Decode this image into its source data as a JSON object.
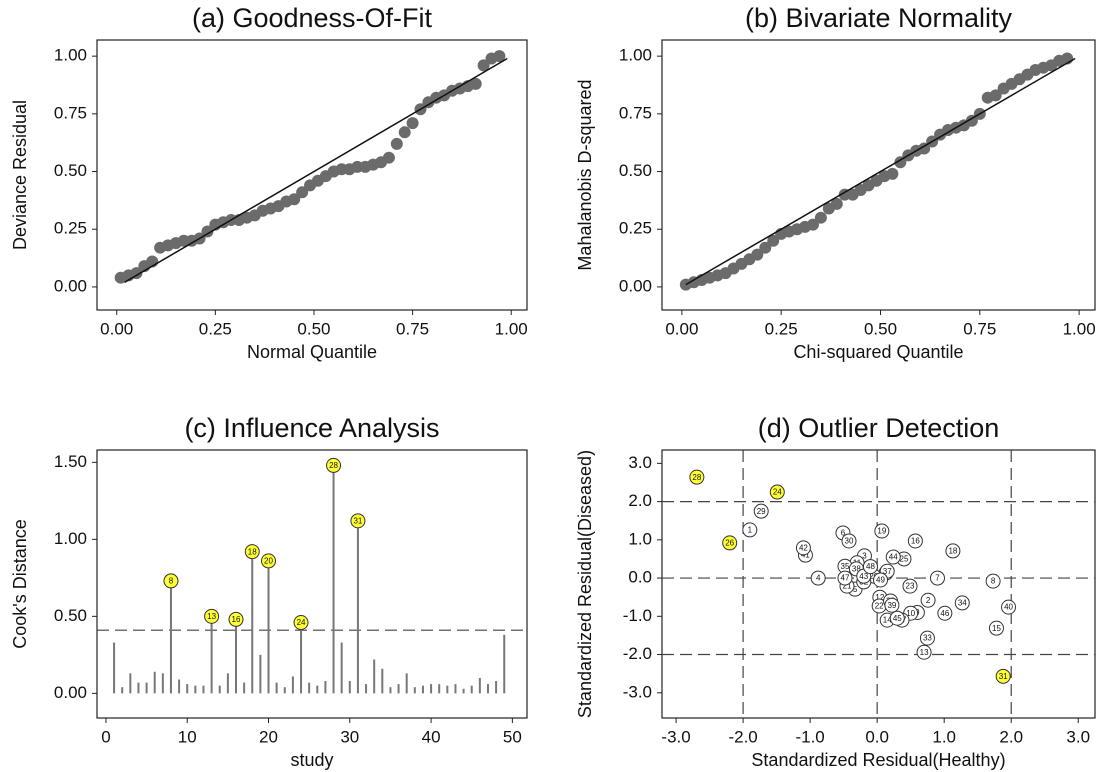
{
  "chart_data": [
    {
      "type": "scatter",
      "title": "(a) Goodness-Of-Fit",
      "x_label": "Normal Quantile",
      "y_label": "Deviance Residual",
      "color": "#6b6b6b",
      "x": [
        0.01,
        0.03,
        0.05,
        0.07,
        0.09,
        0.11,
        0.13,
        0.15,
        0.17,
        0.19,
        0.21,
        0.23,
        0.25,
        0.27,
        0.29,
        0.31,
        0.33,
        0.35,
        0.37,
        0.39,
        0.41,
        0.43,
        0.45,
        0.47,
        0.49,
        0.51,
        0.53,
        0.55,
        0.57,
        0.59,
        0.61,
        0.63,
        0.65,
        0.67,
        0.69,
        0.71,
        0.73,
        0.75,
        0.77,
        0.79,
        0.81,
        0.83,
        0.85,
        0.87,
        0.89,
        0.91,
        0.93,
        0.95,
        0.97
      ],
      "y": [
        0.04,
        0.05,
        0.06,
        0.09,
        0.11,
        0.17,
        0.18,
        0.19,
        0.2,
        0.2,
        0.21,
        0.24,
        0.27,
        0.28,
        0.29,
        0.29,
        0.3,
        0.31,
        0.33,
        0.34,
        0.35,
        0.37,
        0.38,
        0.41,
        0.44,
        0.46,
        0.48,
        0.5,
        0.51,
        0.51,
        0.52,
        0.52,
        0.53,
        0.54,
        0.56,
        0.62,
        0.67,
        0.71,
        0.77,
        0.8,
        0.82,
        0.83,
        0.85,
        0.86,
        0.87,
        0.88,
        0.96,
        0.99,
        1.0
      ],
      "reference_line": {
        "x": [
          0.02,
          0.99
        ],
        "y": [
          0.02,
          0.99
        ]
      },
      "xlim": [
        -0.05,
        1.04
      ],
      "ylim": [
        -0.1,
        1.07
      ],
      "xticks": [
        {
          "value": 0,
          "label": "0.00"
        },
        {
          "value": 0.25,
          "label": "0.25"
        },
        {
          "value": 0.5,
          "label": "0.50"
        },
        {
          "value": 0.75,
          "label": "0.75"
        },
        {
          "value": 1,
          "label": "1.00"
        }
      ],
      "yticks": [
        {
          "value": 0,
          "label": "0.00"
        },
        {
          "value": 0.25,
          "label": "0.25"
        },
        {
          "value": 0.5,
          "label": "0.50"
        },
        {
          "value": 0.75,
          "label": "0.75"
        },
        {
          "value": 1,
          "label": "1.00"
        }
      ]
    },
    {
      "type": "scatter",
      "title": "(b) Bivariate Normality",
      "x_label": "Chi-squared Quantile",
      "y_label": "Mahalanobis D-squared",
      "color": "#6b6b6b",
      "x": [
        0.01,
        0.03,
        0.05,
        0.07,
        0.09,
        0.11,
        0.13,
        0.15,
        0.17,
        0.19,
        0.21,
        0.23,
        0.25,
        0.27,
        0.29,
        0.31,
        0.33,
        0.35,
        0.37,
        0.39,
        0.41,
        0.43,
        0.45,
        0.47,
        0.49,
        0.51,
        0.53,
        0.55,
        0.57,
        0.59,
        0.61,
        0.63,
        0.65,
        0.67,
        0.69,
        0.71,
        0.73,
        0.75,
        0.77,
        0.79,
        0.81,
        0.83,
        0.85,
        0.87,
        0.89,
        0.91,
        0.93,
        0.95,
        0.97
      ],
      "y": [
        0.01,
        0.02,
        0.03,
        0.04,
        0.05,
        0.06,
        0.08,
        0.1,
        0.12,
        0.14,
        0.17,
        0.2,
        0.23,
        0.24,
        0.25,
        0.26,
        0.27,
        0.3,
        0.34,
        0.36,
        0.4,
        0.4,
        0.42,
        0.44,
        0.46,
        0.48,
        0.49,
        0.54,
        0.57,
        0.59,
        0.6,
        0.63,
        0.66,
        0.68,
        0.69,
        0.7,
        0.72,
        0.75,
        0.82,
        0.83,
        0.86,
        0.88,
        0.9,
        0.92,
        0.94,
        0.95,
        0.96,
        0.98,
        0.99
      ],
      "reference_line": {
        "x": [
          0.01,
          0.99
        ],
        "y": [
          0.01,
          0.99
        ]
      },
      "xlim": [
        -0.05,
        1.04
      ],
      "ylim": [
        -0.1,
        1.07
      ],
      "xticks": [
        {
          "value": 0,
          "label": "0.00"
        },
        {
          "value": 0.25,
          "label": "0.25"
        },
        {
          "value": 0.5,
          "label": "0.50"
        },
        {
          "value": 0.75,
          "label": "0.75"
        },
        {
          "value": 1,
          "label": "1.00"
        }
      ],
      "yticks": [
        {
          "value": 0,
          "label": "0.00"
        },
        {
          "value": 0.25,
          "label": "0.25"
        },
        {
          "value": 0.5,
          "label": "0.50"
        },
        {
          "value": 0.75,
          "label": "0.75"
        },
        {
          "value": 1,
          "label": "1.00"
        }
      ]
    },
    {
      "type": "stem",
      "title": "(c) Influence Analysis",
      "x_label": "study",
      "y_label": "Cook's Distance",
      "color": "#777777",
      "highlight_color": "#ffff33",
      "x": [
        1,
        2,
        3,
        4,
        5,
        6,
        7,
        8,
        9,
        10,
        11,
        12,
        13,
        14,
        15,
        16,
        17,
        18,
        19,
        20,
        21,
        22,
        23,
        24,
        25,
        26,
        27,
        28,
        29,
        30,
        31,
        32,
        33,
        34,
        35,
        36,
        37,
        38,
        39,
        40,
        41,
        42,
        43,
        44,
        45,
        46,
        47,
        48,
        49
      ],
      "values": [
        0.33,
        0.04,
        0.13,
        0.07,
        0.07,
        0.14,
        0.13,
        0.73,
        0.09,
        0.06,
        0.05,
        0.05,
        0.5,
        0.05,
        0.13,
        0.48,
        0.07,
        0.92,
        0.25,
        0.86,
        0.07,
        0.04,
        0.11,
        0.46,
        0.07,
        0.05,
        0.08,
        1.48,
        0.33,
        0.08,
        1.12,
        0.06,
        0.22,
        0.16,
        0.04,
        0.06,
        0.13,
        0.04,
        0.05,
        0.06,
        0.06,
        0.05,
        0.06,
        0.03,
        0.05,
        0.1,
        0.06,
        0.08,
        0.38
      ],
      "hline": 0.41,
      "xlim": [
        -1.1,
        51.8
      ],
      "ylim": [
        -0.16,
        1.58
      ],
      "xticks": [
        0,
        10,
        20,
        30,
        40,
        50
      ],
      "yticks": [
        {
          "value": 0,
          "label": "0.00"
        },
        {
          "value": 0.5,
          "label": "0.50"
        },
        {
          "value": 1,
          "label": "1.00"
        },
        {
          "value": 1.5,
          "label": "1.50"
        }
      ]
    },
    {
      "type": "scatter",
      "title": "(d) Outlier Detection",
      "x_label": "Standardized Residual(Healthy)",
      "y_label": "Standardized Residual(Diseased)",
      "color": "#ffffff",
      "highlight_color": "#ffff33",
      "studies": [
        1,
        2,
        3,
        4,
        5,
        6,
        7,
        8,
        9,
        10,
        11,
        12,
        13,
        14,
        15,
        16,
        17,
        18,
        19,
        20,
        21,
        22,
        23,
        24,
        25,
        26,
        27,
        28,
        29,
        30,
        31,
        32,
        33,
        34,
        35,
        36,
        37,
        38,
        39,
        40,
        41,
        42,
        43,
        44,
        45,
        46,
        47,
        48,
        49
      ],
      "x": [
        -1.9,
        0.76,
        -0.19,
        -0.88,
        -0.33,
        -0.51,
        0.9,
        1.73,
        0.6,
        0.5,
        -0.3,
        0.04,
        0.7,
        0.15,
        1.78,
        0.57,
        0.13,
        1.13,
        0.07,
        -0.05,
        -0.45,
        0.03,
        0.49,
        -1.49,
        0.4,
        -2.2,
        0.37,
        -2.69,
        -1.73,
        -0.42,
        1.88,
        -0.2,
        0.75,
        1.27,
        -0.48,
        0.2,
        0.15,
        -0.31,
        0.22,
        1.96,
        -1.07,
        -1.1,
        -0.2,
        0.24,
        0.3,
        1.01,
        -0.48,
        -0.1,
        0.05
      ],
      "y": [
        1.26,
        -0.58,
        0.58,
        0.0,
        -0.29,
        1.18,
        0.0,
        -0.08,
        -0.9,
        -0.92,
        0.4,
        -0.5,
        -1.94,
        -1.1,
        -1.31,
        0.97,
        0.13,
        0.71,
        1.23,
        0.05,
        -0.21,
        -0.73,
        -0.21,
        2.25,
        0.5,
        0.92,
        -1.1,
        2.64,
        1.75,
        0.97,
        -2.57,
        -0.1,
        -1.57,
        -0.65,
        0.31,
        -0.6,
        0.18,
        0.24,
        -0.71,
        -0.76,
        0.6,
        0.79,
        0.05,
        0.55,
        -1.05,
        -0.92,
        0.0,
        0.3,
        -0.05
      ],
      "vlines": [
        -2,
        0,
        2
      ],
      "hlines": [
        -2,
        0,
        2
      ],
      "xlim": [
        -3.21,
        3.25
      ],
      "ylim": [
        -3.66,
        3.35
      ],
      "xticks": [
        {
          "value": -3,
          "label": "-3.0"
        },
        {
          "value": -2,
          "label": "-2.0"
        },
        {
          "value": -1,
          "label": "-1.0"
        },
        {
          "value": 0,
          "label": "0.0"
        },
        {
          "value": 1,
          "label": "1.0"
        },
        {
          "value": 2,
          "label": "2.0"
        },
        {
          "value": 3,
          "label": "3.0"
        }
      ],
      "yticks": [
        {
          "value": -3,
          "label": "-3.0"
        },
        {
          "value": -2,
          "label": "-2.0"
        },
        {
          "value": -1,
          "label": "-1.0"
        },
        {
          "value": 0,
          "label": "0.0"
        },
        {
          "value": 1,
          "label": "1.0"
        },
        {
          "value": 2,
          "label": "2.0"
        },
        {
          "value": 3,
          "label": "3.0"
        }
      ]
    }
  ]
}
